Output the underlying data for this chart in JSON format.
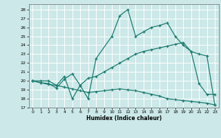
{
  "xlabel": "Humidex (Indice chaleur)",
  "xlim": [
    -0.5,
    23.5
  ],
  "ylim": [
    17,
    28.6
  ],
  "yticks": [
    17,
    18,
    19,
    20,
    21,
    22,
    23,
    24,
    25,
    26,
    27,
    28
  ],
  "xticks": [
    0,
    1,
    2,
    3,
    4,
    5,
    6,
    7,
    8,
    9,
    10,
    11,
    12,
    13,
    14,
    15,
    16,
    17,
    18,
    19,
    20,
    21,
    22,
    23
  ],
  "bg_color": "#cce8e8",
  "grid_color": "#ffffff",
  "line_color": "#1a7a6e",
  "line1_x": [
    0,
    1,
    2,
    3,
    4,
    5,
    6,
    7,
    8,
    10,
    11,
    12,
    13,
    14,
    15,
    16,
    17,
    18,
    19,
    20,
    21,
    22,
    23
  ],
  "line1_y": [
    20.0,
    20.0,
    20.0,
    19.5,
    20.5,
    18.0,
    19.5,
    18.0,
    22.5,
    25.0,
    27.3,
    28.0,
    25.0,
    25.5,
    26.0,
    26.2,
    26.5,
    25.0,
    24.0,
    23.3,
    19.7,
    18.5,
    18.5
  ],
  "line2_x": [
    0,
    1,
    2,
    3,
    4,
    5,
    6,
    7,
    8,
    9,
    10,
    11,
    12,
    13,
    14,
    15,
    16,
    17,
    18,
    19,
    20,
    21,
    22,
    23
  ],
  "line2_y": [
    20.0,
    19.8,
    19.7,
    19.2,
    20.2,
    20.8,
    19.5,
    20.3,
    20.5,
    21.0,
    21.5,
    22.0,
    22.5,
    23.0,
    23.3,
    23.5,
    23.7,
    23.9,
    24.1,
    24.3,
    23.3,
    23.0,
    22.8,
    17.3
  ],
  "line3_x": [
    0,
    1,
    2,
    3,
    4,
    5,
    6,
    7,
    8,
    9,
    10,
    11,
    12,
    13,
    14,
    15,
    16,
    17,
    18,
    19,
    20,
    21,
    22,
    23
  ],
  "line3_y": [
    20.0,
    19.8,
    19.6,
    19.5,
    19.3,
    19.1,
    18.9,
    18.7,
    18.8,
    18.9,
    19.0,
    19.1,
    19.0,
    18.9,
    18.7,
    18.5,
    18.3,
    18.0,
    17.9,
    17.8,
    17.7,
    17.6,
    17.5,
    17.3
  ]
}
